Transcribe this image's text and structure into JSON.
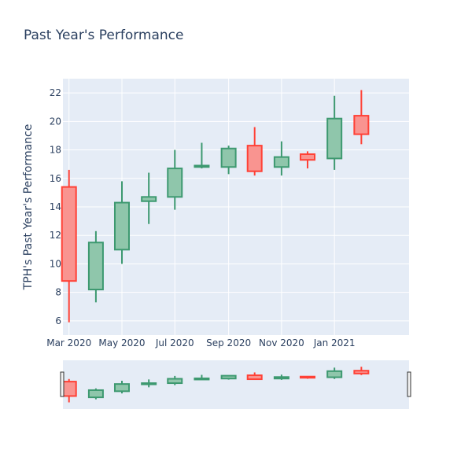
{
  "chart_data": {
    "type": "candlestick",
    "title": "Past Year's Performance",
    "xlabel": "",
    "ylabel": "TPH's Past Year's Performance",
    "ylim": [
      5,
      23
    ],
    "yticks": [
      6,
      8,
      10,
      12,
      14,
      16,
      18,
      20,
      22
    ],
    "xrange": [
      "2020-02-23",
      "2021-03-28"
    ],
    "xticks": [
      {
        "date": "2020-03-01",
        "label": "Mar 2020"
      },
      {
        "date": "2020-05-01",
        "label": "May 2020"
      },
      {
        "date": "2020-07-01",
        "label": "Jul 2020"
      },
      {
        "date": "2020-09-01",
        "label": "Sep 2020"
      },
      {
        "date": "2020-11-01",
        "label": "Nov 2020"
      },
      {
        "date": "2021-01-01",
        "label": "Jan 2021"
      }
    ],
    "grid": true,
    "legend": "none",
    "colors": {
      "increasing": "#3d9970",
      "increasing_fill": "#8fc6ab",
      "decreasing": "#ff4136",
      "decreasing_fill": "#f99490",
      "plot_background": "#e5ecf6",
      "grid": "#ffffff",
      "text": "#2a3f5f"
    },
    "candles": [
      {
        "date": "2020-03-01",
        "open": 15.4,
        "high": 16.6,
        "low": 5.9,
        "close": 8.8
      },
      {
        "date": "2020-04-01",
        "open": 8.2,
        "high": 12.3,
        "low": 7.3,
        "close": 11.5
      },
      {
        "date": "2020-05-01",
        "open": 11.0,
        "high": 15.8,
        "low": 10.0,
        "close": 14.3
      },
      {
        "date": "2020-06-01",
        "open": 14.4,
        "high": 16.4,
        "low": 12.8,
        "close": 14.7
      },
      {
        "date": "2020-07-01",
        "open": 14.7,
        "high": 18.0,
        "low": 13.8,
        "close": 16.7
      },
      {
        "date": "2020-08-01",
        "open": 16.8,
        "high": 18.5,
        "low": 16.7,
        "close": 16.9
      },
      {
        "date": "2020-09-01",
        "open": 16.8,
        "high": 18.3,
        "low": 16.3,
        "close": 18.1
      },
      {
        "date": "2020-10-01",
        "open": 18.3,
        "high": 19.6,
        "low": 16.2,
        "close": 16.5
      },
      {
        "date": "2020-11-01",
        "open": 16.8,
        "high": 18.6,
        "low": 16.2,
        "close": 17.5
      },
      {
        "date": "2020-12-01",
        "open": 17.7,
        "high": 17.9,
        "low": 16.7,
        "close": 17.3
      },
      {
        "date": "2021-01-01",
        "open": 17.4,
        "high": 21.8,
        "low": 16.6,
        "close": 20.2
      },
      {
        "date": "2021-02-01",
        "open": 20.4,
        "high": 22.2,
        "low": 18.4,
        "close": 19.1
      }
    ]
  }
}
